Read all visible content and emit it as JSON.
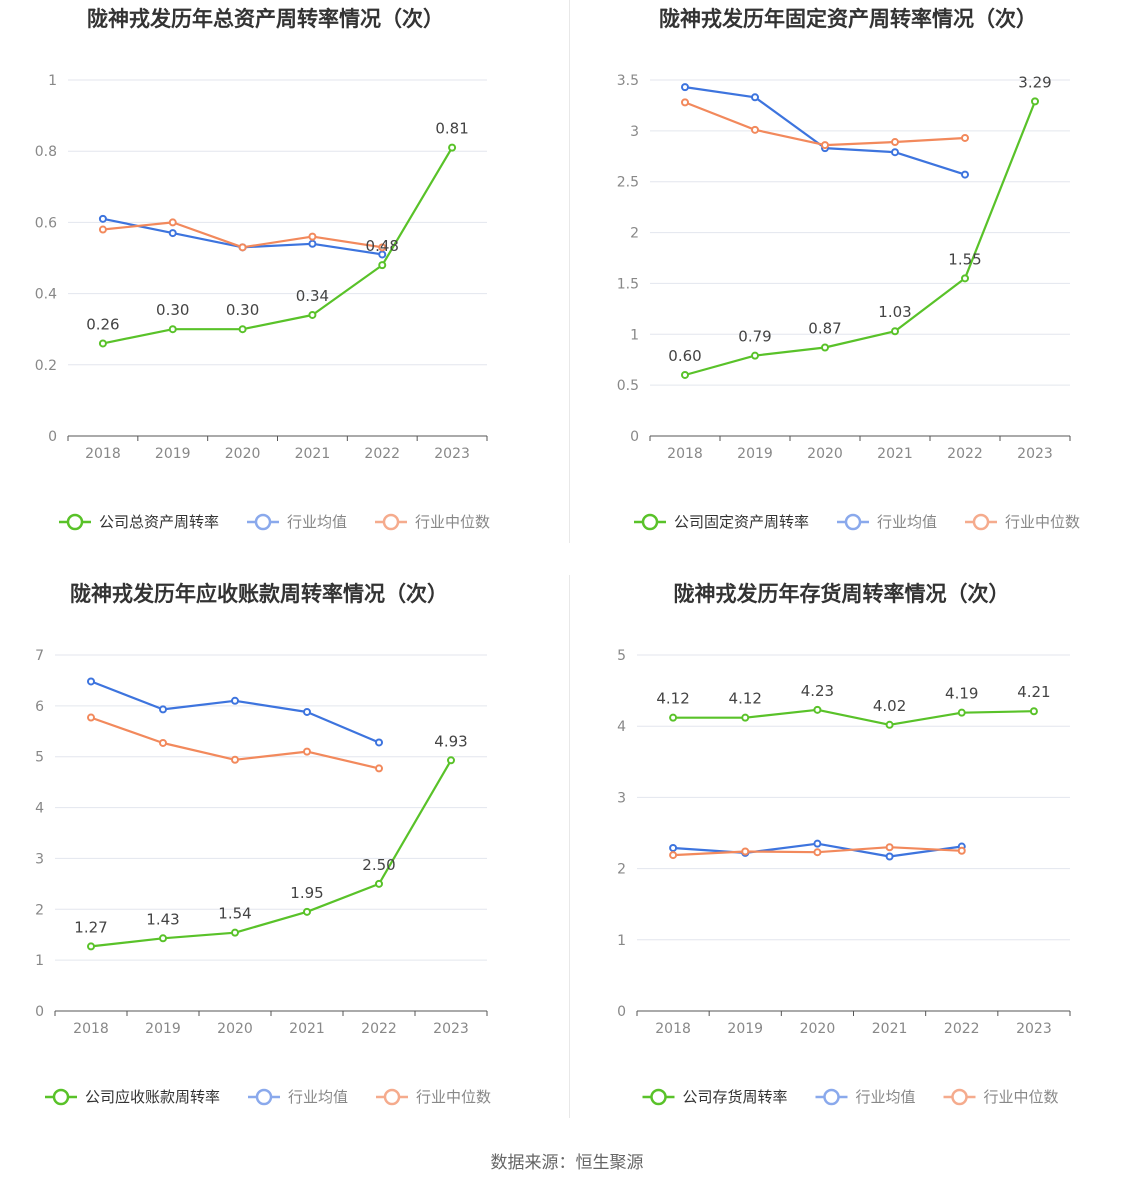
{
  "source_text": "数据来源：恒生聚源",
  "colors": {
    "company": "#59c229",
    "industry_avg": "#3d74de",
    "industry_median": "#f2895c",
    "legend_avg_icon": "#8aa9ec",
    "legend_median_icon": "#f5ab8d",
    "grid": "#e3e6ee",
    "axis": "#555555",
    "tick_text": "#888888",
    "title_text": "#333333"
  },
  "chart_data": [
    {
      "type": "line",
      "title": "陇神戎发历年总资产周转率情况（次）",
      "categories": [
        "2018",
        "2019",
        "2020",
        "2021",
        "2022",
        "2023"
      ],
      "ylim": [
        0,
        1
      ],
      "yticks": [
        0,
        0.2,
        0.4,
        0.6,
        0.8,
        1
      ],
      "ytick_labels": [
        "0",
        "0.2",
        "0.4",
        "0.6",
        "0.8",
        "1"
      ],
      "grid": true,
      "legend_position": "bottom",
      "series": [
        {
          "name": "公司总资产周转率",
          "role": "company",
          "values": [
            0.26,
            0.3,
            0.3,
            0.34,
            0.48,
            0.81
          ],
          "labels": [
            "0.26",
            "0.30",
            "0.30",
            "0.34",
            "0.48",
            "0.81"
          ]
        },
        {
          "name": "行业均值",
          "role": "industry_avg",
          "values": [
            0.61,
            0.57,
            0.53,
            0.54,
            0.51,
            null
          ]
        },
        {
          "name": "行业中位数",
          "role": "industry_median",
          "values": [
            0.58,
            0.6,
            0.53,
            0.56,
            0.53,
            null
          ]
        }
      ]
    },
    {
      "type": "line",
      "title": "陇神戎发历年固定资产周转率情况（次）",
      "categories": [
        "2018",
        "2019",
        "2020",
        "2021",
        "2022",
        "2023"
      ],
      "ylim": [
        0,
        3.5
      ],
      "yticks": [
        0,
        0.5,
        1,
        1.5,
        2,
        2.5,
        3,
        3.5
      ],
      "ytick_labels": [
        "0",
        "0.5",
        "1",
        "1.5",
        "2",
        "2.5",
        "3",
        "3.5"
      ],
      "grid": true,
      "legend_position": "bottom",
      "series": [
        {
          "name": "公司固定资产周转率",
          "role": "company",
          "values": [
            0.6,
            0.79,
            0.87,
            1.03,
            1.55,
            3.29
          ],
          "labels": [
            "0.60",
            "0.79",
            "0.87",
            "1.03",
            "1.55",
            "3.29"
          ]
        },
        {
          "name": "行业均值",
          "role": "industry_avg",
          "values": [
            3.43,
            3.33,
            2.83,
            2.79,
            2.57,
            null
          ]
        },
        {
          "name": "行业中位数",
          "role": "industry_median",
          "values": [
            3.28,
            3.01,
            2.86,
            2.89,
            2.93,
            null
          ]
        }
      ]
    },
    {
      "type": "line",
      "title": "陇神戎发历年应收账款周转率情况（次）",
      "categories": [
        "2018",
        "2019",
        "2020",
        "2021",
        "2022",
        "2023"
      ],
      "ylim": [
        0,
        7
      ],
      "yticks": [
        0,
        1,
        2,
        3,
        4,
        5,
        6,
        7
      ],
      "ytick_labels": [
        "0",
        "1",
        "2",
        "3",
        "4",
        "5",
        "6",
        "7"
      ],
      "grid": true,
      "legend_position": "bottom",
      "series": [
        {
          "name": "公司应收账款周转率",
          "role": "company",
          "values": [
            1.27,
            1.43,
            1.54,
            1.95,
            2.5,
            4.93
          ],
          "labels": [
            "1.27",
            "1.43",
            "1.54",
            "1.95",
            "2.50",
            "4.93"
          ]
        },
        {
          "name": "行业均值",
          "role": "industry_avg",
          "values": [
            6.48,
            5.93,
            6.1,
            5.88,
            5.28,
            null
          ]
        },
        {
          "name": "行业中位数",
          "role": "industry_median",
          "values": [
            5.77,
            5.27,
            4.94,
            5.1,
            4.77,
            null
          ]
        }
      ]
    },
    {
      "type": "line",
      "title": "陇神戎发历年存货周转率情况（次）",
      "categories": [
        "2018",
        "2019",
        "2020",
        "2021",
        "2022",
        "2023"
      ],
      "ylim": [
        0,
        5
      ],
      "yticks": [
        0,
        1,
        2,
        3,
        4,
        5
      ],
      "ytick_labels": [
        "0",
        "1",
        "2",
        "3",
        "4",
        "5"
      ],
      "grid": true,
      "legend_position": "bottom",
      "series": [
        {
          "name": "公司存货周转率",
          "role": "company",
          "values": [
            4.12,
            4.12,
            4.23,
            4.02,
            4.19,
            4.21
          ],
          "labels": [
            "4.12",
            "4.12",
            "4.23",
            "4.02",
            "4.19",
            "4.21"
          ]
        },
        {
          "name": "行业均值",
          "role": "industry_avg",
          "values": [
            2.29,
            2.22,
            2.35,
            2.17,
            2.31,
            null
          ]
        },
        {
          "name": "行业中位数",
          "role": "industry_median",
          "values": [
            2.19,
            2.24,
            2.23,
            2.3,
            2.25,
            null
          ]
        }
      ]
    }
  ]
}
